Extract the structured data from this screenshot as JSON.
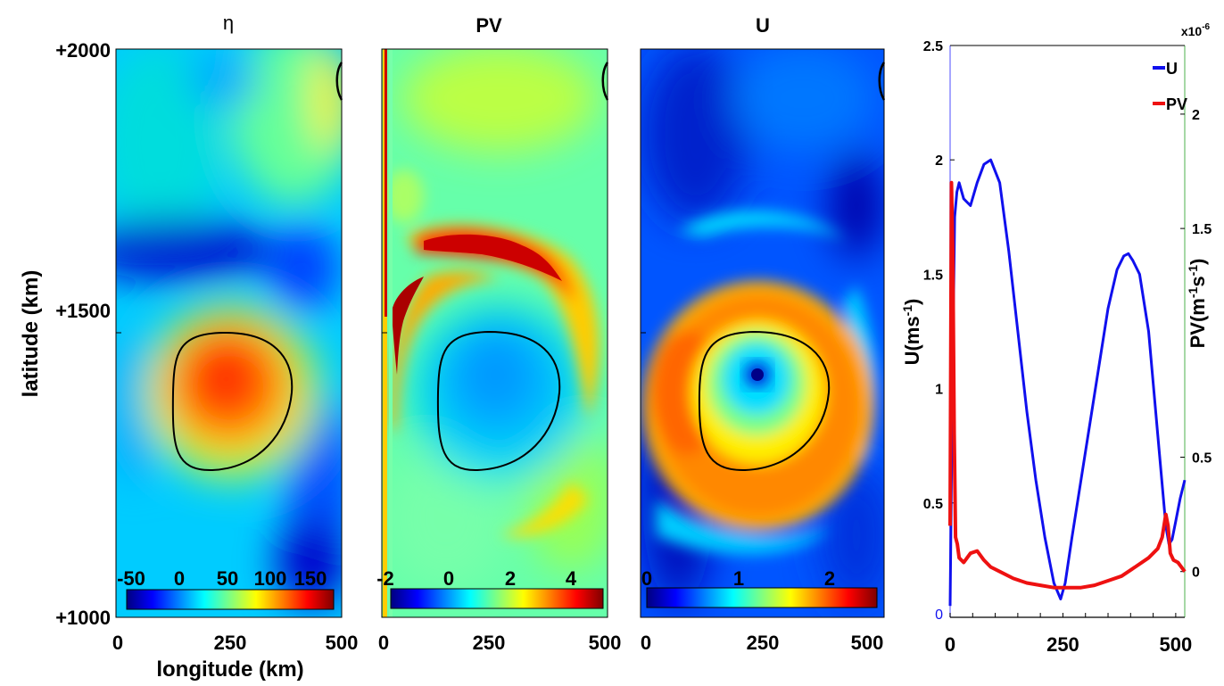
{
  "figure": {
    "left_axis_ticks": [
      "+2000",
      "+1500",
      "+1000"
    ],
    "left_axis_label": "latitude (km)",
    "bottom_axis_label": "longitude (km)",
    "lon_ticks": [
      "0",
      "250",
      "500"
    ]
  },
  "panels": [
    {
      "id": "eta",
      "title": "η",
      "colorbar_ticks": [
        "-50",
        "0",
        "50",
        "100",
        "150"
      ]
    },
    {
      "id": "pv",
      "title": "PV",
      "colorbar_ticks": [
        "-2",
        "0",
        "2",
        "4"
      ]
    },
    {
      "id": "u",
      "title": "U",
      "colorbar_ticks": [
        "0",
        "1",
        "2"
      ]
    }
  ],
  "colors": {
    "jet": [
      "#00007f",
      "#0000ff",
      "#0080ff",
      "#00ffff",
      "#80ff80",
      "#ffff00",
      "#ff8000",
      "#ff0000",
      "#7f0000"
    ],
    "u_series": "#1010ee",
    "pv_series": "#ee1111"
  },
  "chart_data": {
    "type": "line",
    "title": "",
    "xlabel": "",
    "x_ticks": [
      "0",
      "250",
      "500"
    ],
    "xlim": [
      0,
      520
    ],
    "left_ylabel": "U(ms-1)",
    "left_ylabel_parts": [
      "U(ms",
      "-1",
      ")"
    ],
    "left_yticks": [
      "0.5",
      "1",
      "1.5",
      "2",
      "2.5"
    ],
    "left_ylim": [
      0,
      2.5
    ],
    "right_ylabel": "PV(m-1s-1)",
    "right_ylabel_parts": [
      "PV(m",
      "-1",
      "s",
      "-1",
      ")"
    ],
    "right_yticks": [
      "0",
      "0.5",
      "1.5",
      "2"
    ],
    "right_ylim": [
      -0.2,
      2.3
    ],
    "right_scale_label": "x10-6",
    "right_scale_parts": [
      "x10",
      "-6"
    ],
    "left_origin_label": "0",
    "legend": [
      "U",
      "PV"
    ],
    "legend_position": "top-right",
    "series": [
      {
        "name": "U",
        "axis": "left",
        "x": [
          0,
          5,
          10,
          15,
          20,
          30,
          45,
          60,
          75,
          90,
          110,
          130,
          150,
          170,
          190,
          210,
          230,
          245,
          255,
          270,
          290,
          310,
          330,
          350,
          370,
          385,
          395,
          405,
          420,
          440,
          460,
          478,
          485,
          492,
          500,
          510,
          520
        ],
        "y": [
          0.05,
          1.0,
          1.75,
          1.86,
          1.9,
          1.83,
          1.8,
          1.9,
          1.98,
          2.0,
          1.9,
          1.6,
          1.25,
          0.9,
          0.6,
          0.35,
          0.15,
          0.08,
          0.15,
          0.35,
          0.6,
          0.85,
          1.1,
          1.35,
          1.52,
          1.58,
          1.59,
          1.56,
          1.5,
          1.25,
          0.8,
          0.4,
          0.32,
          0.34,
          0.42,
          0.52,
          0.6
        ]
      },
      {
        "name": "PV",
        "axis": "right",
        "x": [
          0,
          3,
          6,
          9,
          12,
          16,
          20,
          30,
          45,
          60,
          75,
          90,
          110,
          140,
          170,
          200,
          230,
          260,
          290,
          320,
          350,
          380,
          410,
          440,
          460,
          470,
          478,
          483,
          488,
          495,
          505,
          520
        ],
        "y": [
          0.2,
          1.7,
          1.4,
          0.6,
          0.15,
          0.12,
          0.06,
          0.04,
          0.08,
          0.09,
          0.05,
          0.02,
          0.0,
          -0.03,
          -0.05,
          -0.06,
          -0.07,
          -0.07,
          -0.07,
          -0.06,
          -0.04,
          -0.02,
          0.02,
          0.06,
          0.1,
          0.15,
          0.25,
          0.2,
          0.08,
          0.05,
          0.04,
          0.0
        ]
      }
    ]
  }
}
